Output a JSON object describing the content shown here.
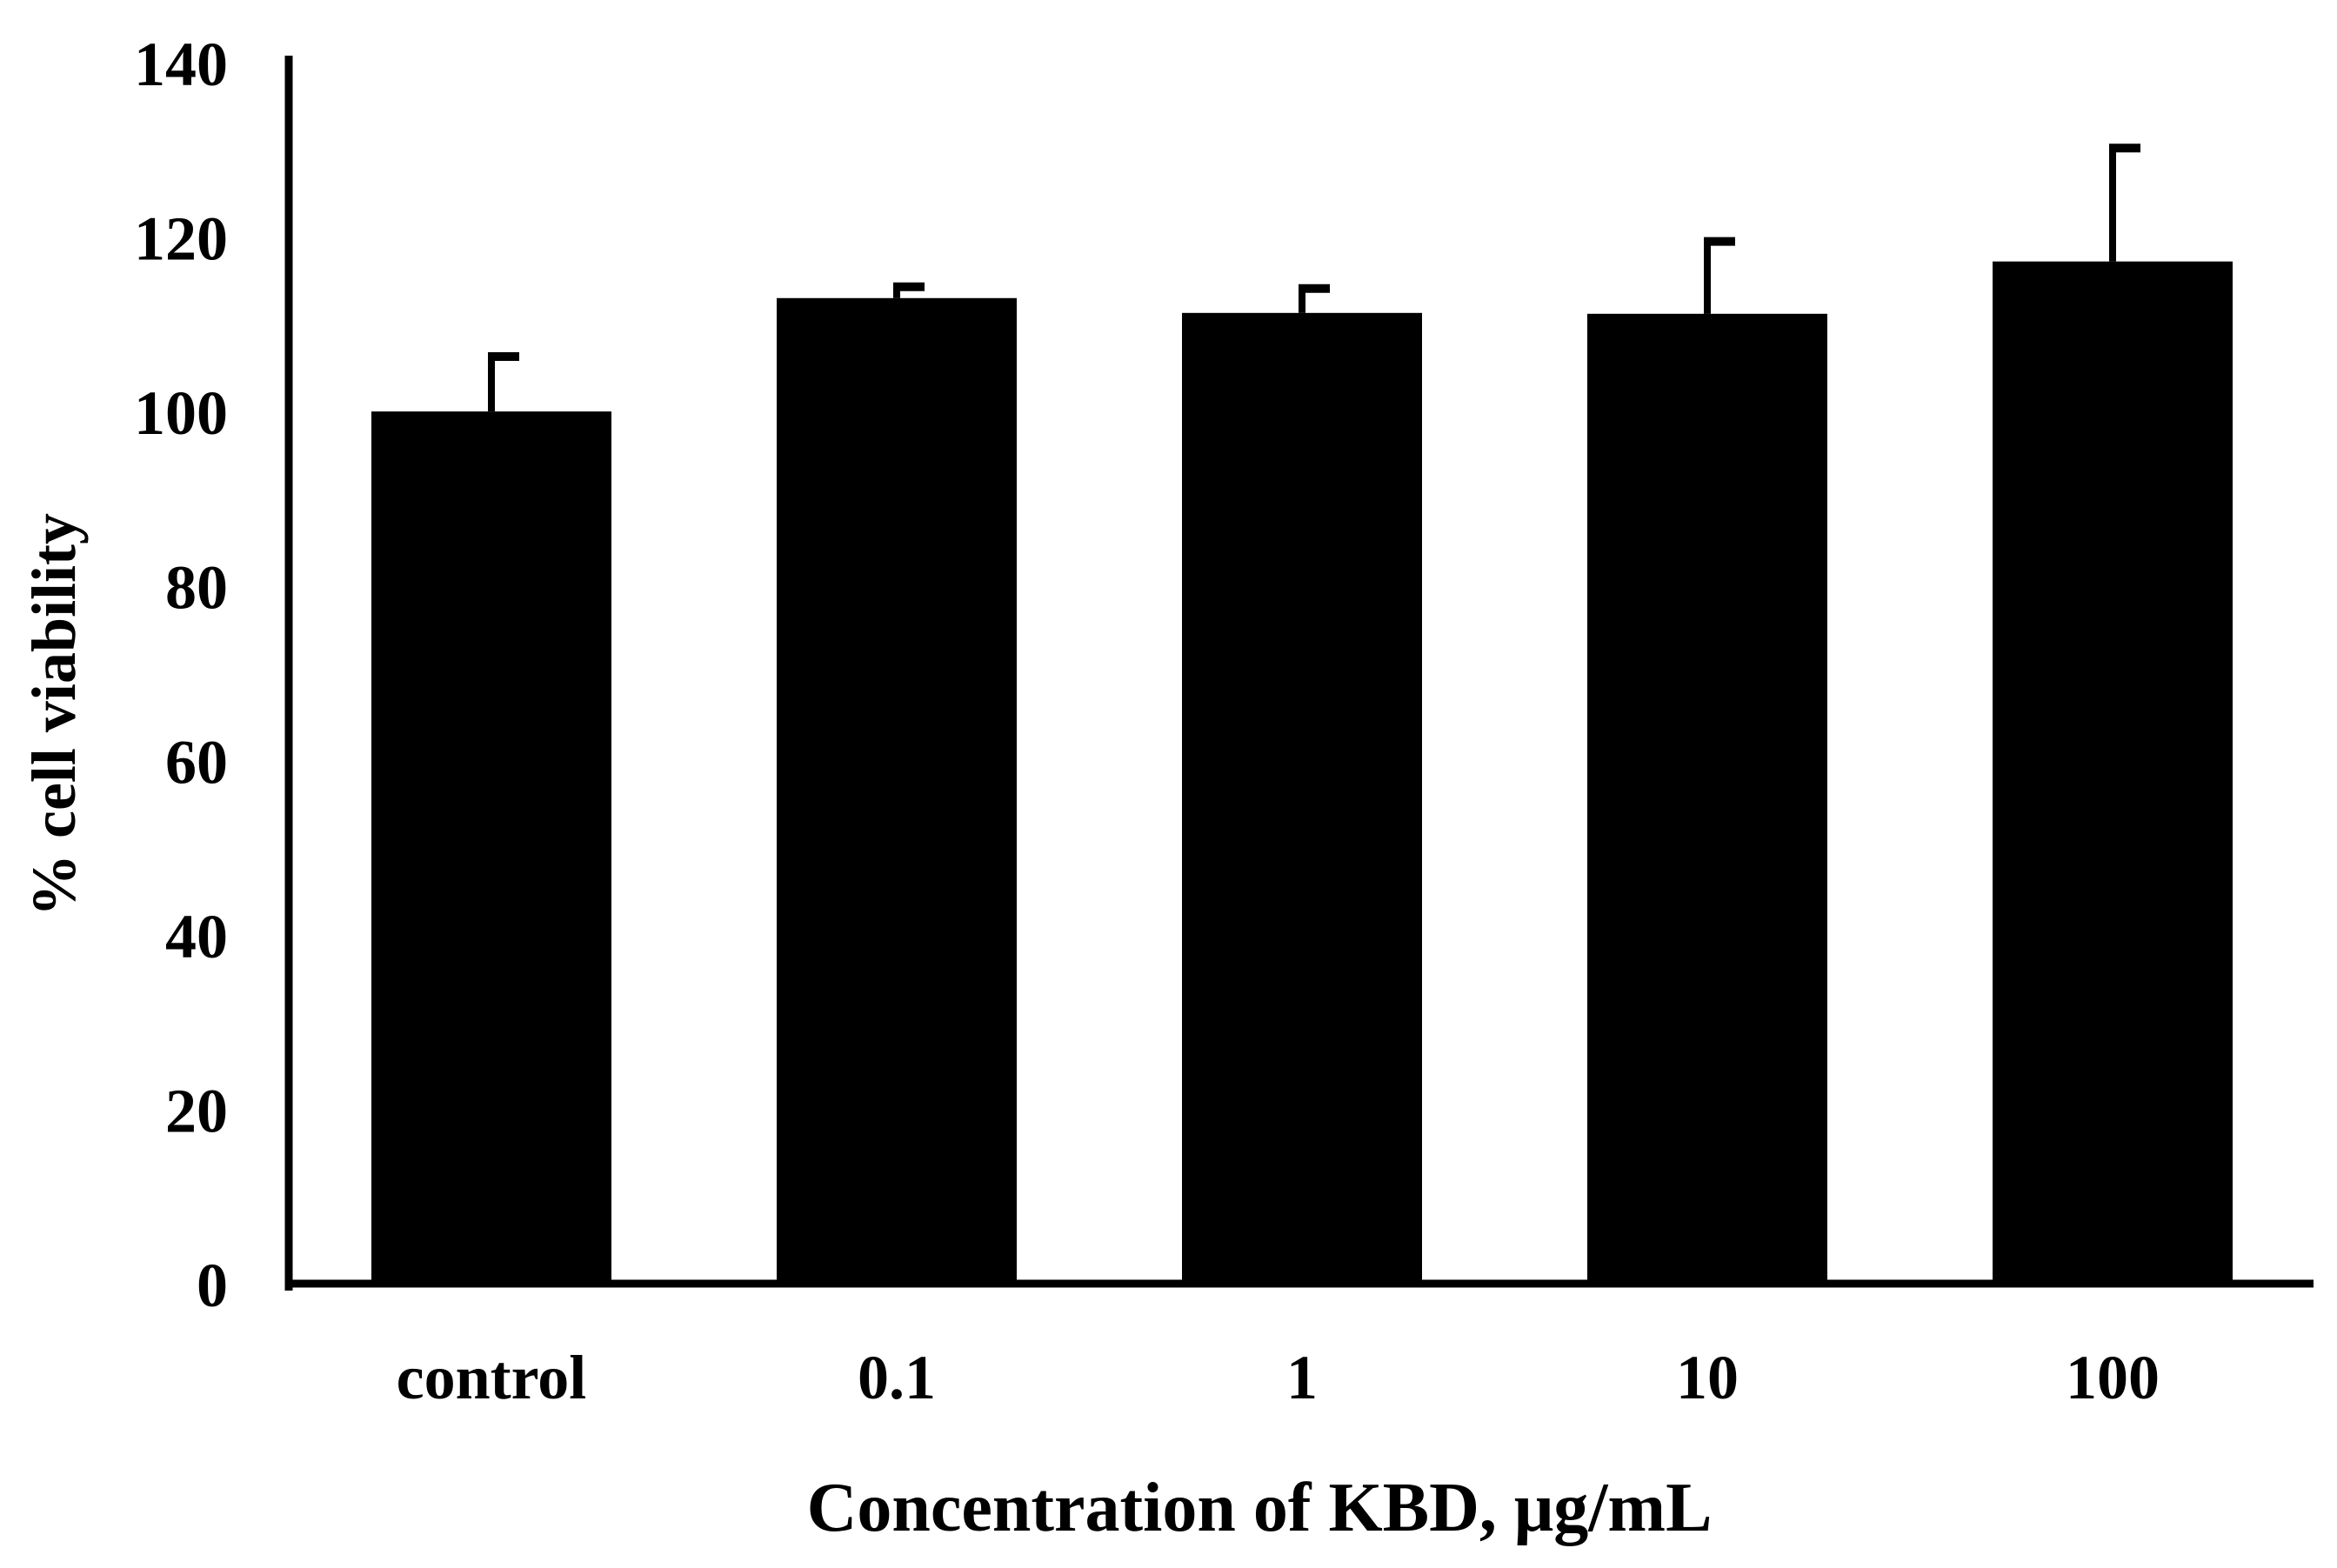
{
  "chart_data": {
    "type": "bar",
    "title": "",
    "categories": [
      "control",
      "0.1",
      "1",
      "10",
      "100"
    ],
    "series": [
      {
        "name": "% cell viability",
        "values": [
          100,
          113,
          111.3,
          111.2,
          117.2
        ],
        "error_upper": [
          6.3,
          1.3,
          2.8,
          8.3,
          13.0
        ]
      }
    ],
    "xlabel": "Concentration of KBD, μg/mL",
    "ylabel": "% cell viability",
    "ylim": [
      0,
      140
    ],
    "yticks": [
      "0",
      "20",
      "40",
      "60",
      "80",
      "100",
      "120",
      "140"
    ],
    "grid": false,
    "legend": "none",
    "colors": {
      "bar": "#000000",
      "axis": "#000000",
      "background": "#ffffff"
    }
  }
}
